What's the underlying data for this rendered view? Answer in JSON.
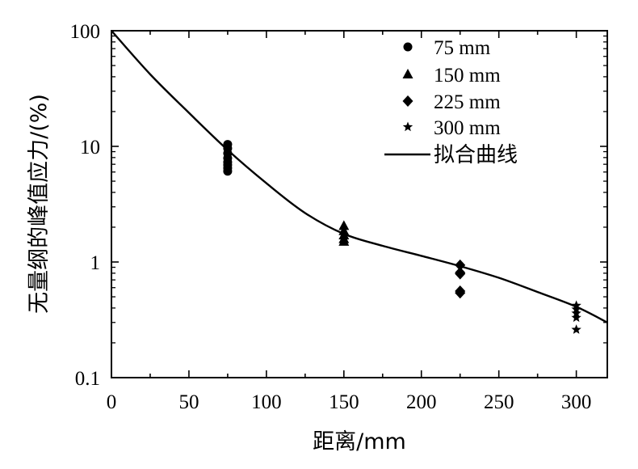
{
  "chart_data": {
    "type": "scatter",
    "xlabel": "距离/mm",
    "ylabel": "无量纲的峰值应力/(%)",
    "xlim": [
      0,
      320
    ],
    "ylim": [
      0.1,
      100
    ],
    "yscale": "log",
    "xticks": [
      "0",
      "50",
      "100",
      "150",
      "200",
      "250",
      "300"
    ],
    "yticks": [
      "0.1",
      "1",
      "10",
      "100"
    ],
    "grid": false,
    "legend_position": "top-right",
    "series": [
      {
        "name": "75 mm",
        "marker": "circle",
        "points": [
          [
            75,
            10.4
          ],
          [
            75,
            9.6
          ],
          [
            75,
            8.7
          ],
          [
            75,
            7.9
          ],
          [
            75,
            7.3
          ],
          [
            75,
            6.9
          ],
          [
            75,
            6.5
          ],
          [
            75,
            6.1
          ]
        ]
      },
      {
        "name": "150 mm",
        "marker": "triangle",
        "points": [
          [
            150,
            2.05
          ],
          [
            150,
            1.85
          ],
          [
            150,
            1.7
          ],
          [
            150,
            1.58
          ],
          [
            150,
            1.5
          ]
        ]
      },
      {
        "name": "225 mm",
        "marker": "diamond",
        "points": [
          [
            225,
            0.94
          ],
          [
            225,
            0.81
          ],
          [
            225,
            0.79
          ],
          [
            225,
            0.56
          ],
          [
            225,
            0.54
          ]
        ]
      },
      {
        "name": "300 mm",
        "marker": "star",
        "points": [
          [
            300,
            0.42
          ],
          [
            300,
            0.39
          ],
          [
            300,
            0.36
          ],
          [
            300,
            0.33
          ],
          [
            300,
            0.26
          ]
        ]
      },
      {
        "name": "拟合曲线",
        "type": "line",
        "points": [
          [
            0,
            100
          ],
          [
            25,
            42
          ],
          [
            50,
            19.5
          ],
          [
            75,
            9.3
          ],
          [
            100,
            4.8
          ],
          [
            125,
            2.65
          ],
          [
            150,
            1.75
          ],
          [
            175,
            1.38
          ],
          [
            200,
            1.13
          ],
          [
            225,
            0.92
          ],
          [
            250,
            0.73
          ],
          [
            275,
            0.55
          ],
          [
            300,
            0.41
          ],
          [
            320,
            0.3
          ]
        ]
      }
    ]
  }
}
